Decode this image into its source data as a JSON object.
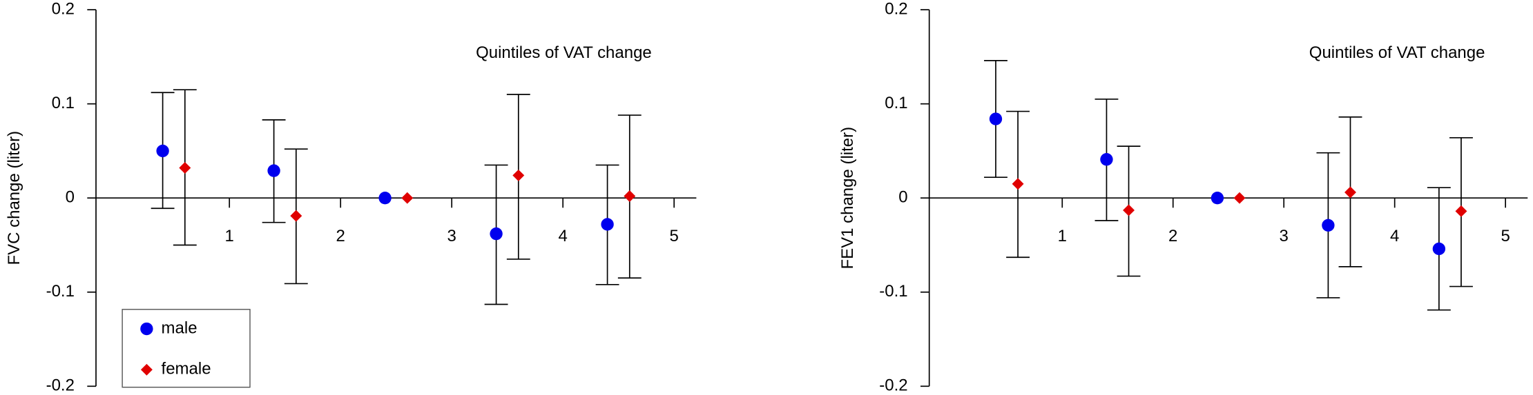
{
  "chart_data": [
    {
      "type": "errorbar",
      "ylabel": "FVC change (liter)",
      "annotation": "Quintiles of VAT change",
      "xlim": [
        -0.2,
        5.2
      ],
      "xticks": [
        1,
        2,
        3,
        4,
        5
      ],
      "ylim": [
        -0.2,
        0.2
      ],
      "yticks": [
        -0.2,
        -0.1,
        0,
        0.1,
        0.2
      ],
      "legend": true,
      "series": [
        {
          "name": "male",
          "color": "#0000ee",
          "marker": "circle",
          "x": [
            0.4,
            1.4,
            2.4,
            3.4,
            4.4
          ],
          "values": [
            0.05,
            0.029,
            0,
            -0.038,
            -0.028
          ],
          "ci_low": [
            -0.011,
            -0.026,
            null,
            -0.113,
            -0.092
          ],
          "ci_high": [
            0.112,
            0.083,
            null,
            0.035,
            0.035
          ]
        },
        {
          "name": "female",
          "color": "#e00000",
          "marker": "diamond",
          "x": [
            0.6,
            1.6,
            2.6,
            3.6,
            4.6
          ],
          "values": [
            0.032,
            -0.019,
            0,
            0.024,
            0.002
          ],
          "ci_low": [
            -0.05,
            -0.091,
            null,
            -0.065,
            -0.085
          ],
          "ci_high": [
            0.115,
            0.052,
            null,
            0.11,
            0.088
          ]
        }
      ]
    },
    {
      "type": "errorbar",
      "ylabel": "FEV1 change (liter)",
      "annotation": "Quintiles of VAT change",
      "xlim": [
        -0.2,
        5.2
      ],
      "xticks": [
        1,
        2,
        3,
        4,
        5
      ],
      "ylim": [
        -0.2,
        0.2
      ],
      "yticks": [
        -0.2,
        -0.1,
        0,
        0.1,
        0.2
      ],
      "legend": false,
      "series": [
        {
          "color": "#0000ee",
          "marker": "circle",
          "x": [
            0.4,
            1.4,
            2.4,
            3.4,
            4.4
          ],
          "values": [
            0.084,
            0.041,
            0,
            -0.029,
            -0.054
          ],
          "ci_low": [
            0.022,
            -0.024,
            null,
            -0.106,
            -0.119
          ],
          "ci_high": [
            0.146,
            0.105,
            null,
            0.048,
            0.011
          ]
        },
        {
          "color": "#e00000",
          "marker": "diamond",
          "x": [
            0.6,
            1.6,
            2.6,
            3.6,
            4.6
          ],
          "values": [
            0.015,
            -0.013,
            0,
            0.006,
            -0.014
          ],
          "ci_low": [
            -0.063,
            -0.083,
            null,
            -0.073,
            -0.094
          ],
          "ci_high": [
            0.092,
            0.055,
            null,
            0.086,
            0.064
          ]
        }
      ]
    }
  ]
}
